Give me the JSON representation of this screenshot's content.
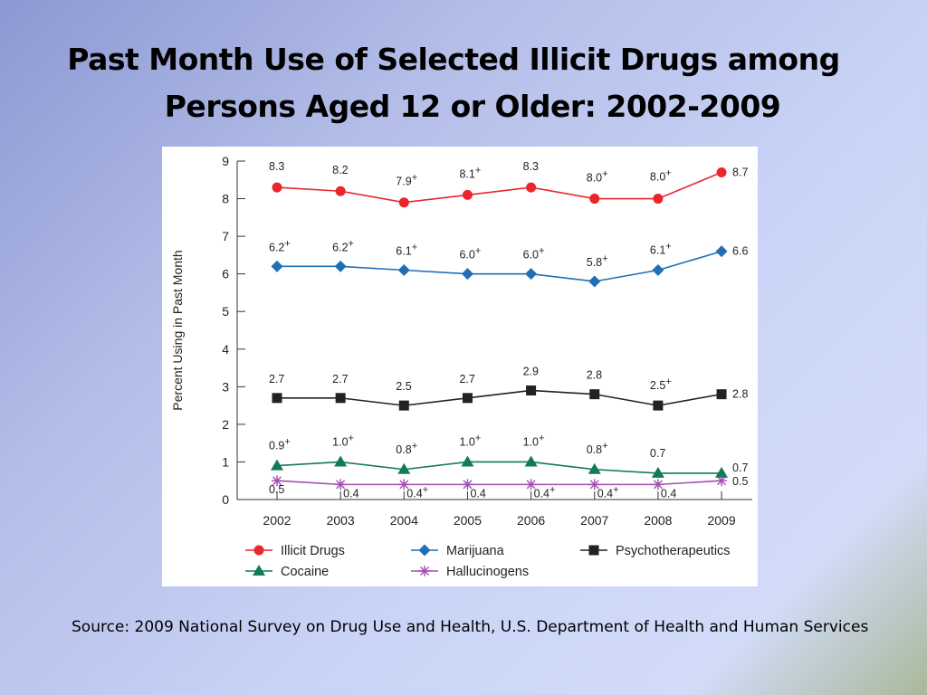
{
  "title_line1": "Past Month Use of Selected Illicit Drugs among",
  "title_line2": "Persons Aged 12 or Older: 2002-2009",
  "source": "Source: 2009 National Survey on Drug Use and Health, U.S. Department of Health and Human Services",
  "chart_data": {
    "type": "line",
    "title": "",
    "xlabel": "",
    "ylabel": "Percent Using in Past Month",
    "ylim": [
      0,
      9
    ],
    "yticks": [
      "0",
      "1",
      "2",
      "3",
      "4",
      "5",
      "6",
      "7",
      "8",
      "9"
    ],
    "categories": [
      "2002",
      "2003",
      "2004",
      "2005",
      "2006",
      "2007",
      "2008",
      "2009"
    ],
    "grid": false,
    "legend_placement": "bottom",
    "series": [
      {
        "name": "Illicit Drugs",
        "color": "#e8262c",
        "marker": "circle",
        "values": [
          8.3,
          8.2,
          7.9,
          8.1,
          8.3,
          8.0,
          8.0,
          8.7
        ],
        "labels": [
          "8.3",
          "8.2",
          "7.9+",
          "8.1+",
          "8.3",
          "8.0+",
          "8.0+",
          "8.7"
        ]
      },
      {
        "name": "Marijuana",
        "color": "#1f6fb4",
        "marker": "diamond",
        "values": [
          6.2,
          6.2,
          6.1,
          6.0,
          6.0,
          5.8,
          6.1,
          6.6
        ],
        "labels": [
          "6.2+",
          "6.2+",
          "6.1+",
          "6.0+",
          "6.0+",
          "5.8+",
          "6.1+",
          "6.6"
        ]
      },
      {
        "name": "Psychotherapeutics",
        "color": "#222222",
        "marker": "square",
        "values": [
          2.7,
          2.7,
          2.5,
          2.7,
          2.9,
          2.8,
          2.5,
          2.8
        ],
        "labels": [
          "2.7",
          "2.7",
          "2.5",
          "2.7",
          "2.9",
          "2.8",
          "2.5+",
          "2.8"
        ]
      },
      {
        "name": "Cocaine",
        "color": "#127a55",
        "marker": "triangle",
        "values": [
          0.9,
          1.0,
          0.8,
          1.0,
          1.0,
          0.8,
          0.7,
          0.7
        ],
        "labels": [
          "0.9+",
          "1.0+",
          "0.8+",
          "1.0+",
          "1.0+",
          "0.8+",
          "0.7",
          "0.7"
        ]
      },
      {
        "name": "Hallucinogens",
        "color": "#a04fb0",
        "marker": "asterisk",
        "values": [
          0.5,
          0.4,
          0.4,
          0.4,
          0.4,
          0.4,
          0.4,
          0.5
        ],
        "labels": [
          "0.5",
          "0.4",
          "0.4+",
          "0.4",
          "0.4+",
          "0.4+",
          "0.4",
          "0.5"
        ]
      }
    ]
  }
}
